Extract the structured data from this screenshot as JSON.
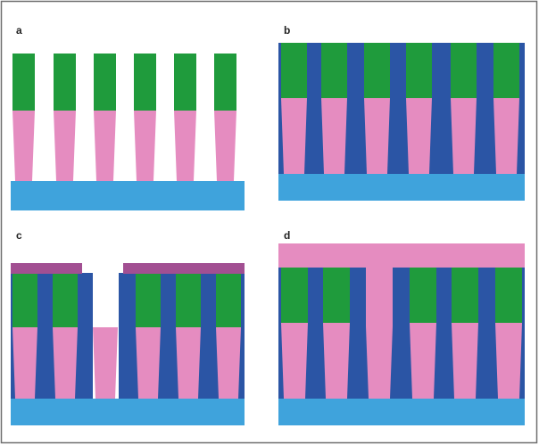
{
  "figure": {
    "panels": [
      {
        "id": "a",
        "label": "a"
      },
      {
        "id": "b",
        "label": "b"
      },
      {
        "id": "c",
        "label": "c"
      },
      {
        "id": "d",
        "label": "d"
      }
    ]
  },
  "colors": {
    "frame": "#6f6f6f",
    "substrate": "#3fa3dc",
    "gate_top": "#1f9b3c",
    "gate_bottom": "#e58cc0",
    "spacer": "#2b55a5",
    "mask": "#a24f92",
    "fill_layer": "#e58cc0"
  }
}
